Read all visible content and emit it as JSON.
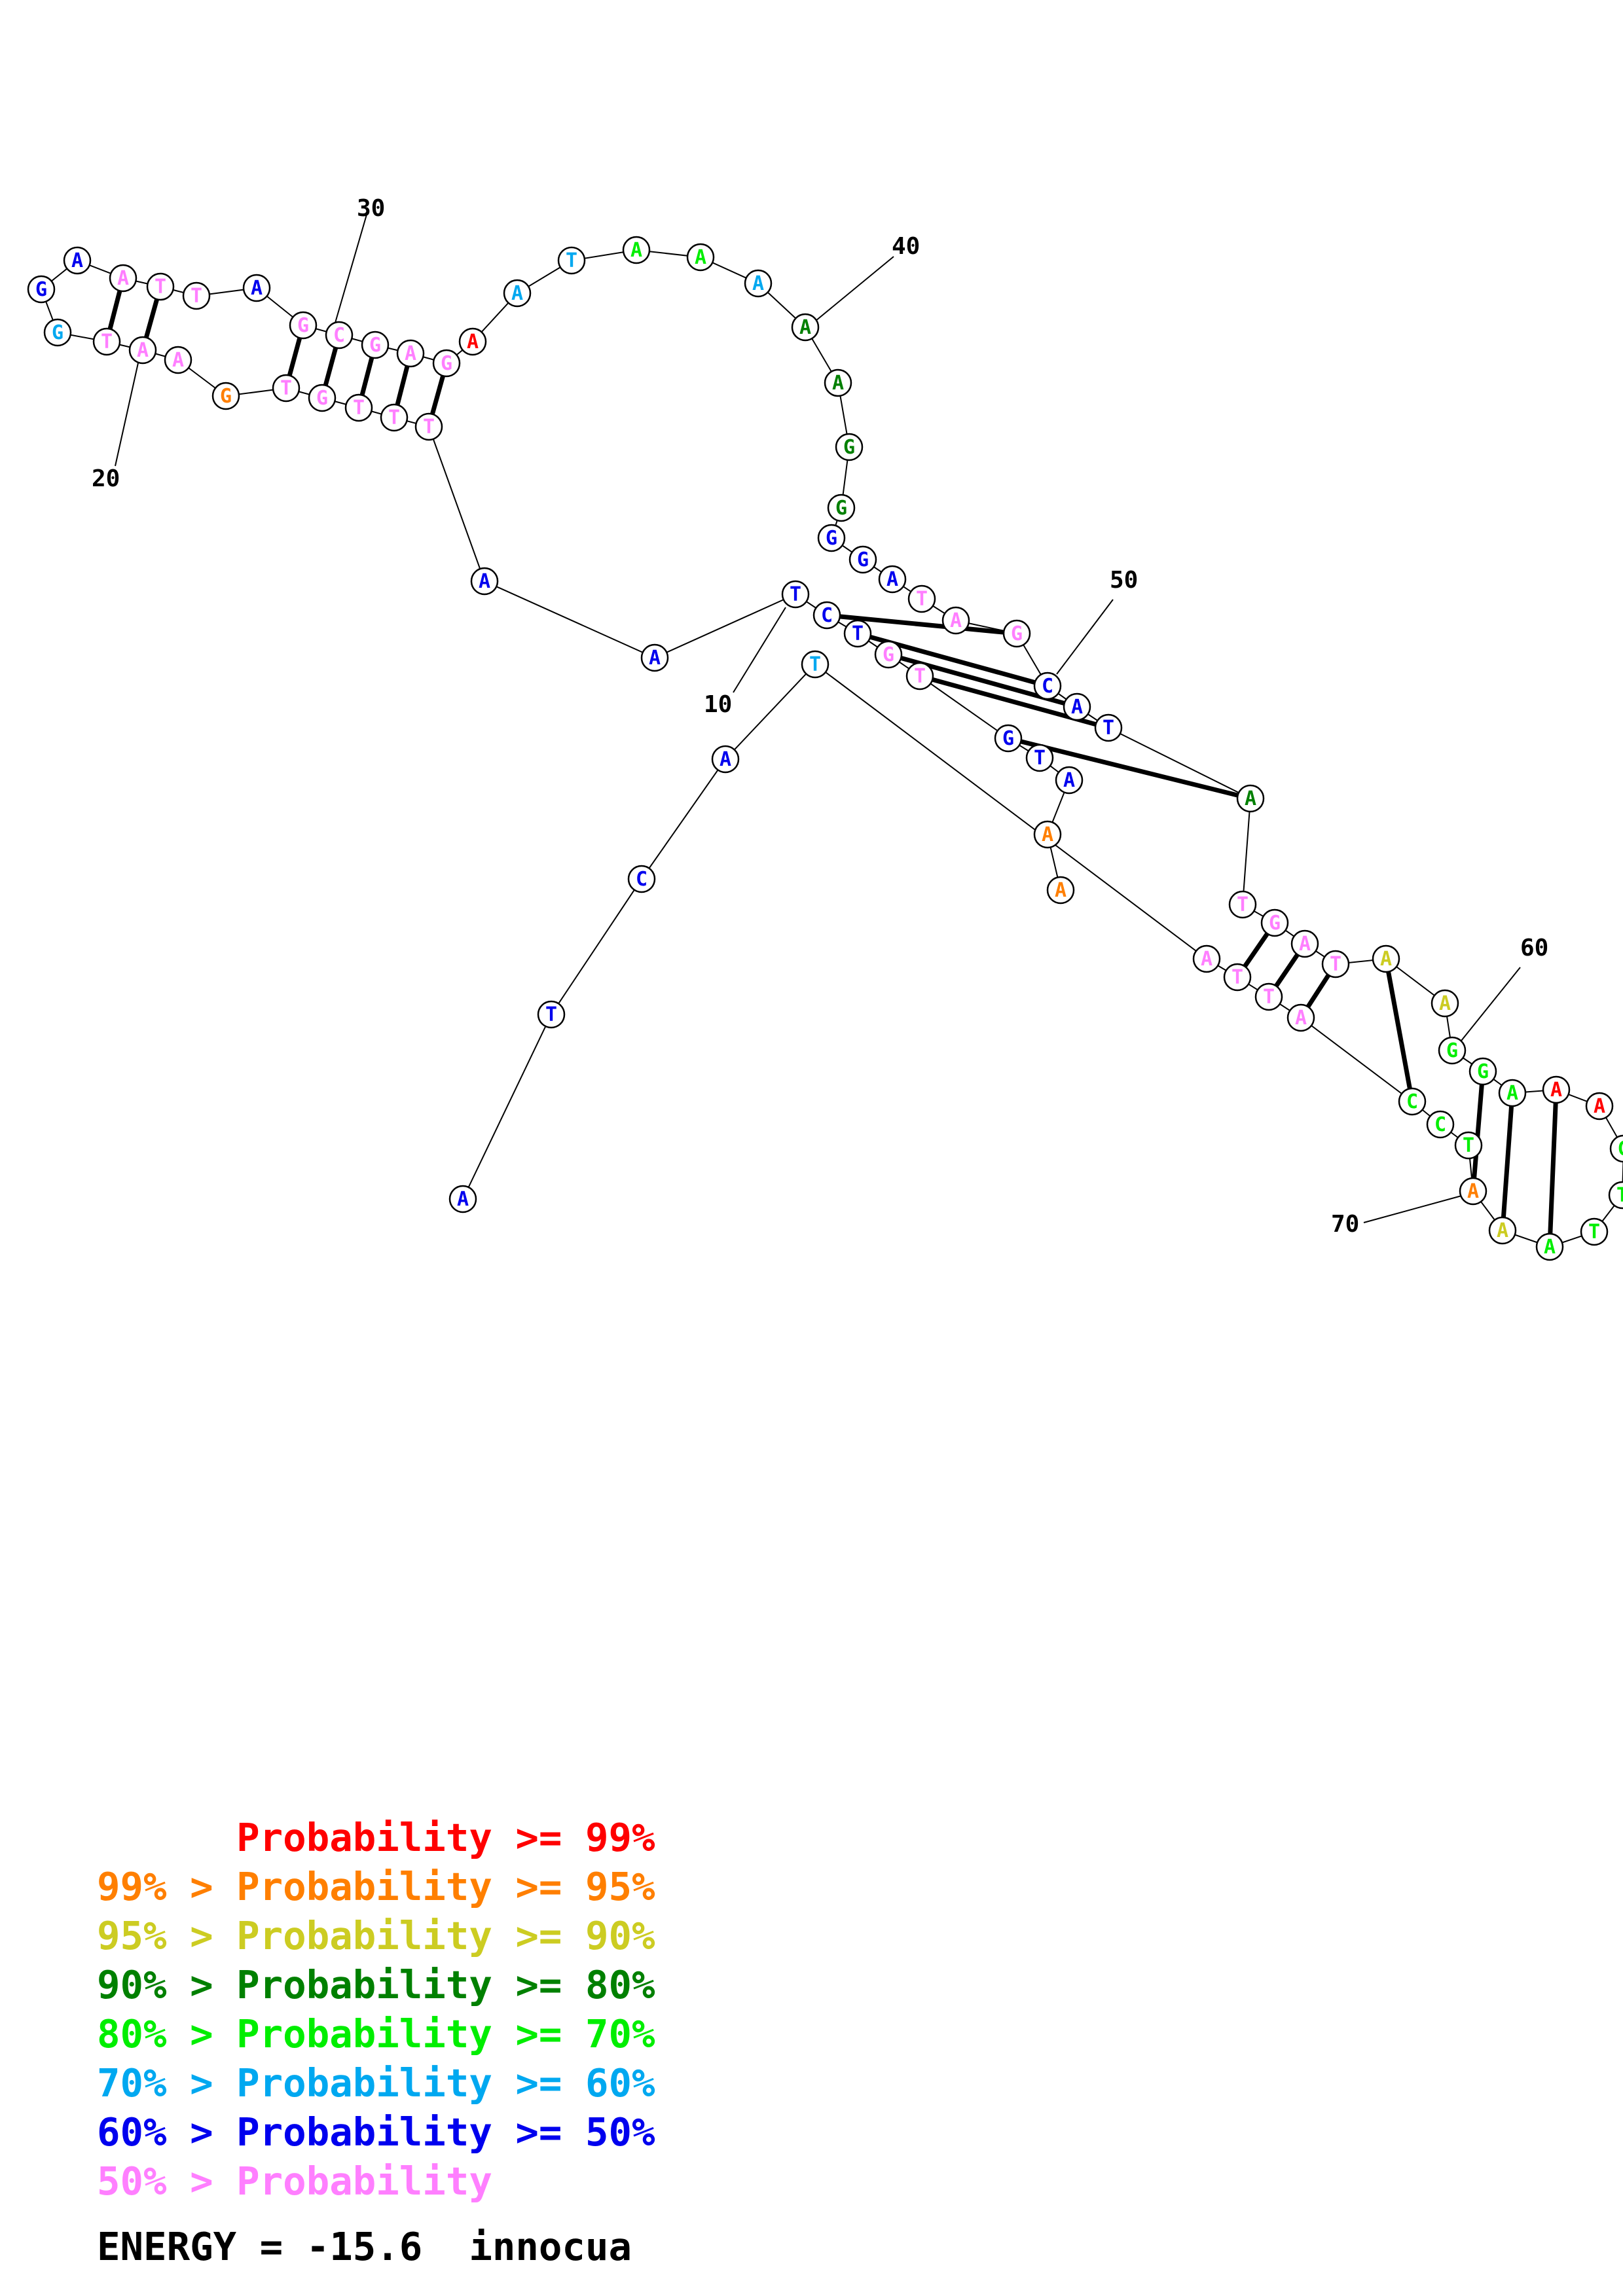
{
  "colors": {
    "p99": "#ff0000",
    "p95": "#ff7f00",
    "p90": "#cccc22",
    "p80": "#008000",
    "p70": "#00ee00",
    "p60": "#00a8f0",
    "p50": "#0000ee",
    "plt50": "#ff7fff"
  },
  "structure": {
    "sequence_with_confidence": [
      {
        "n": 1,
        "base": "A",
        "c": "p95"
      },
      {
        "n": 2,
        "base": "A",
        "c": "p95"
      },
      {
        "n": 3,
        "base": "A",
        "c": "p50"
      },
      {
        "n": 4,
        "base": "T",
        "c": "p50"
      },
      {
        "n": 5,
        "base": "G",
        "c": "p50"
      },
      {
        "n": 6,
        "base": "T",
        "c": "plt50"
      },
      {
        "n": 7,
        "base": "G",
        "c": "plt50"
      },
      {
        "n": 8,
        "base": "T",
        "c": "p50"
      },
      {
        "n": 9,
        "base": "C",
        "c": "p50"
      },
      {
        "n": 10,
        "base": "T",
        "c": "p50"
      },
      {
        "n": 11,
        "base": "A",
        "c": "p50"
      },
      {
        "n": 12,
        "base": "A",
        "c": "p50"
      },
      {
        "n": 13,
        "base": "T",
        "c": "plt50"
      },
      {
        "n": 14,
        "base": "T",
        "c": "plt50"
      },
      {
        "n": 15,
        "base": "T",
        "c": "plt50"
      },
      {
        "n": 16,
        "base": "G",
        "c": "plt50"
      },
      {
        "n": 17,
        "base": "T",
        "c": "plt50"
      },
      {
        "n": 18,
        "base": "G",
        "c": "p95"
      },
      {
        "n": 19,
        "base": "A",
        "c": "plt50"
      },
      {
        "n": 20,
        "base": "A",
        "c": "plt50"
      },
      {
        "n": 21,
        "base": "T",
        "c": "plt50"
      },
      {
        "n": 22,
        "base": "G",
        "c": "p60"
      },
      {
        "n": 23,
        "base": "G",
        "c": "p50"
      },
      {
        "n": 24,
        "base": "A",
        "c": "p50"
      },
      {
        "n": 25,
        "base": "A",
        "c": "plt50"
      },
      {
        "n": 26,
        "base": "T",
        "c": "plt50"
      },
      {
        "n": 27,
        "base": "T",
        "c": "plt50"
      },
      {
        "n": 28,
        "base": "A",
        "c": "p50"
      },
      {
        "n": 29,
        "base": "G",
        "c": "plt50"
      },
      {
        "n": 30,
        "base": "C",
        "c": "plt50"
      },
      {
        "n": 31,
        "base": "G",
        "c": "plt50"
      },
      {
        "n": 32,
        "base": "A",
        "c": "plt50"
      },
      {
        "n": 33,
        "base": "G",
        "c": "plt50"
      },
      {
        "n": 34,
        "base": "A",
        "c": "p99"
      },
      {
        "n": 35,
        "base": "A",
        "c": "p60"
      },
      {
        "n": 36,
        "base": "T",
        "c": "p60"
      },
      {
        "n": 37,
        "base": "A",
        "c": "p70"
      },
      {
        "n": 38,
        "base": "A",
        "c": "p70"
      },
      {
        "n": 39,
        "base": "A",
        "c": "p60"
      },
      {
        "n": 40,
        "base": "A",
        "c": "p80"
      },
      {
        "n": 41,
        "base": "A",
        "c": "p80"
      },
      {
        "n": 42,
        "base": "G",
        "c": "p80"
      },
      {
        "n": 43,
        "base": "G",
        "c": "p80"
      },
      {
        "n": 44,
        "base": "G",
        "c": "p50"
      },
      {
        "n": 45,
        "base": "G",
        "c": "p50"
      },
      {
        "n": 46,
        "base": "A",
        "c": "p50"
      },
      {
        "n": 47,
        "base": "T",
        "c": "plt50"
      },
      {
        "n": 48,
        "base": "A",
        "c": "plt50"
      },
      {
        "n": 49,
        "base": "G",
        "c": "plt50"
      },
      {
        "n": 50,
        "base": "C",
        "c": "p50"
      },
      {
        "n": 51,
        "base": "A",
        "c": "p50"
      },
      {
        "n": 52,
        "base": "T",
        "c": "p50"
      },
      {
        "n": 53,
        "base": "A",
        "c": "p80"
      },
      {
        "n": 54,
        "base": "T",
        "c": "plt50"
      },
      {
        "n": 55,
        "base": "G",
        "c": "plt50"
      },
      {
        "n": 56,
        "base": "A",
        "c": "plt50"
      },
      {
        "n": 57,
        "base": "T",
        "c": "plt50"
      },
      {
        "n": 58,
        "base": "A",
        "c": "p90"
      },
      {
        "n": 59,
        "base": "A",
        "c": "p90"
      },
      {
        "n": 60,
        "base": "G",
        "c": "p70"
      },
      {
        "n": 61,
        "base": "G",
        "c": "p70"
      },
      {
        "n": 62,
        "base": "A",
        "c": "p70"
      },
      {
        "n": 63,
        "base": "A",
        "c": "p99"
      },
      {
        "n": 64,
        "base": "A",
        "c": "p99"
      },
      {
        "n": 65,
        "base": "G",
        "c": "p70"
      },
      {
        "n": 66,
        "base": "T",
        "c": "p70"
      },
      {
        "n": 67,
        "base": "T",
        "c": "p70"
      },
      {
        "n": 68,
        "base": "A",
        "c": "p70"
      },
      {
        "n": 69,
        "base": "A",
        "c": "p90"
      },
      {
        "n": 70,
        "base": "A",
        "c": "p95"
      },
      {
        "n": 71,
        "base": "T",
        "c": "p70"
      },
      {
        "n": 72,
        "base": "C",
        "c": "p70"
      },
      {
        "n": 73,
        "base": "C",
        "c": "p70"
      },
      {
        "n": 74,
        "base": "A",
        "c": "plt50"
      },
      {
        "n": 75,
        "base": "T",
        "c": "plt50"
      },
      {
        "n": 76,
        "base": "T",
        "c": "plt50"
      },
      {
        "n": 77,
        "base": "A",
        "c": "plt50"
      },
      {
        "n": 78,
        "base": "T",
        "c": "p60"
      },
      {
        "n": 79,
        "base": "A",
        "c": "p50"
      },
      {
        "n": 80,
        "base": "C",
        "c": "p50"
      },
      {
        "n": 81,
        "base": "T",
        "c": "p50"
      },
      {
        "n": 82,
        "base": "A",
        "c": "p50"
      }
    ],
    "pairs": [
      [
        5,
        53
      ],
      [
        6,
        52
      ],
      [
        7,
        51
      ],
      [
        8,
        50
      ],
      [
        9,
        49
      ],
      [
        13,
        33
      ],
      [
        14,
        32
      ],
      [
        15,
        31
      ],
      [
        16,
        30
      ],
      [
        17,
        29
      ],
      [
        20,
        26
      ],
      [
        21,
        25
      ],
      [
        55,
        76
      ],
      [
        56,
        75
      ],
      [
        57,
        74
      ],
      [
        58,
        73
      ],
      [
        61,
        70
      ],
      [
        62,
        69
      ],
      [
        63,
        68
      ]
    ],
    "index_labels": [
      "10",
      "20",
      "30",
      "40",
      "50",
      "60",
      "70"
    ]
  },
  "legend": [
    {
      "prefix": "",
      "text": "Probability >= 99%",
      "c": "p99"
    },
    {
      "prefix": "99% > ",
      "text": "Probability >= 95%",
      "c": "p95"
    },
    {
      "prefix": "95% > ",
      "text": "Probability >= 90%",
      "c": "p90"
    },
    {
      "prefix": "90% > ",
      "text": "Probability >= 80%",
      "c": "p80"
    },
    {
      "prefix": "80% > ",
      "text": "Probability >= 70%",
      "c": "p70"
    },
    {
      "prefix": "70% > ",
      "text": "Probability >= 60%",
      "c": "p60"
    },
    {
      "prefix": "60% > ",
      "text": "Probability >= 50%",
      "c": "p50"
    },
    {
      "prefix": "50% > ",
      "text": "Probability",
      "c": "plt50"
    }
  ],
  "energy": "ENERGY = -15.6  innocua"
}
